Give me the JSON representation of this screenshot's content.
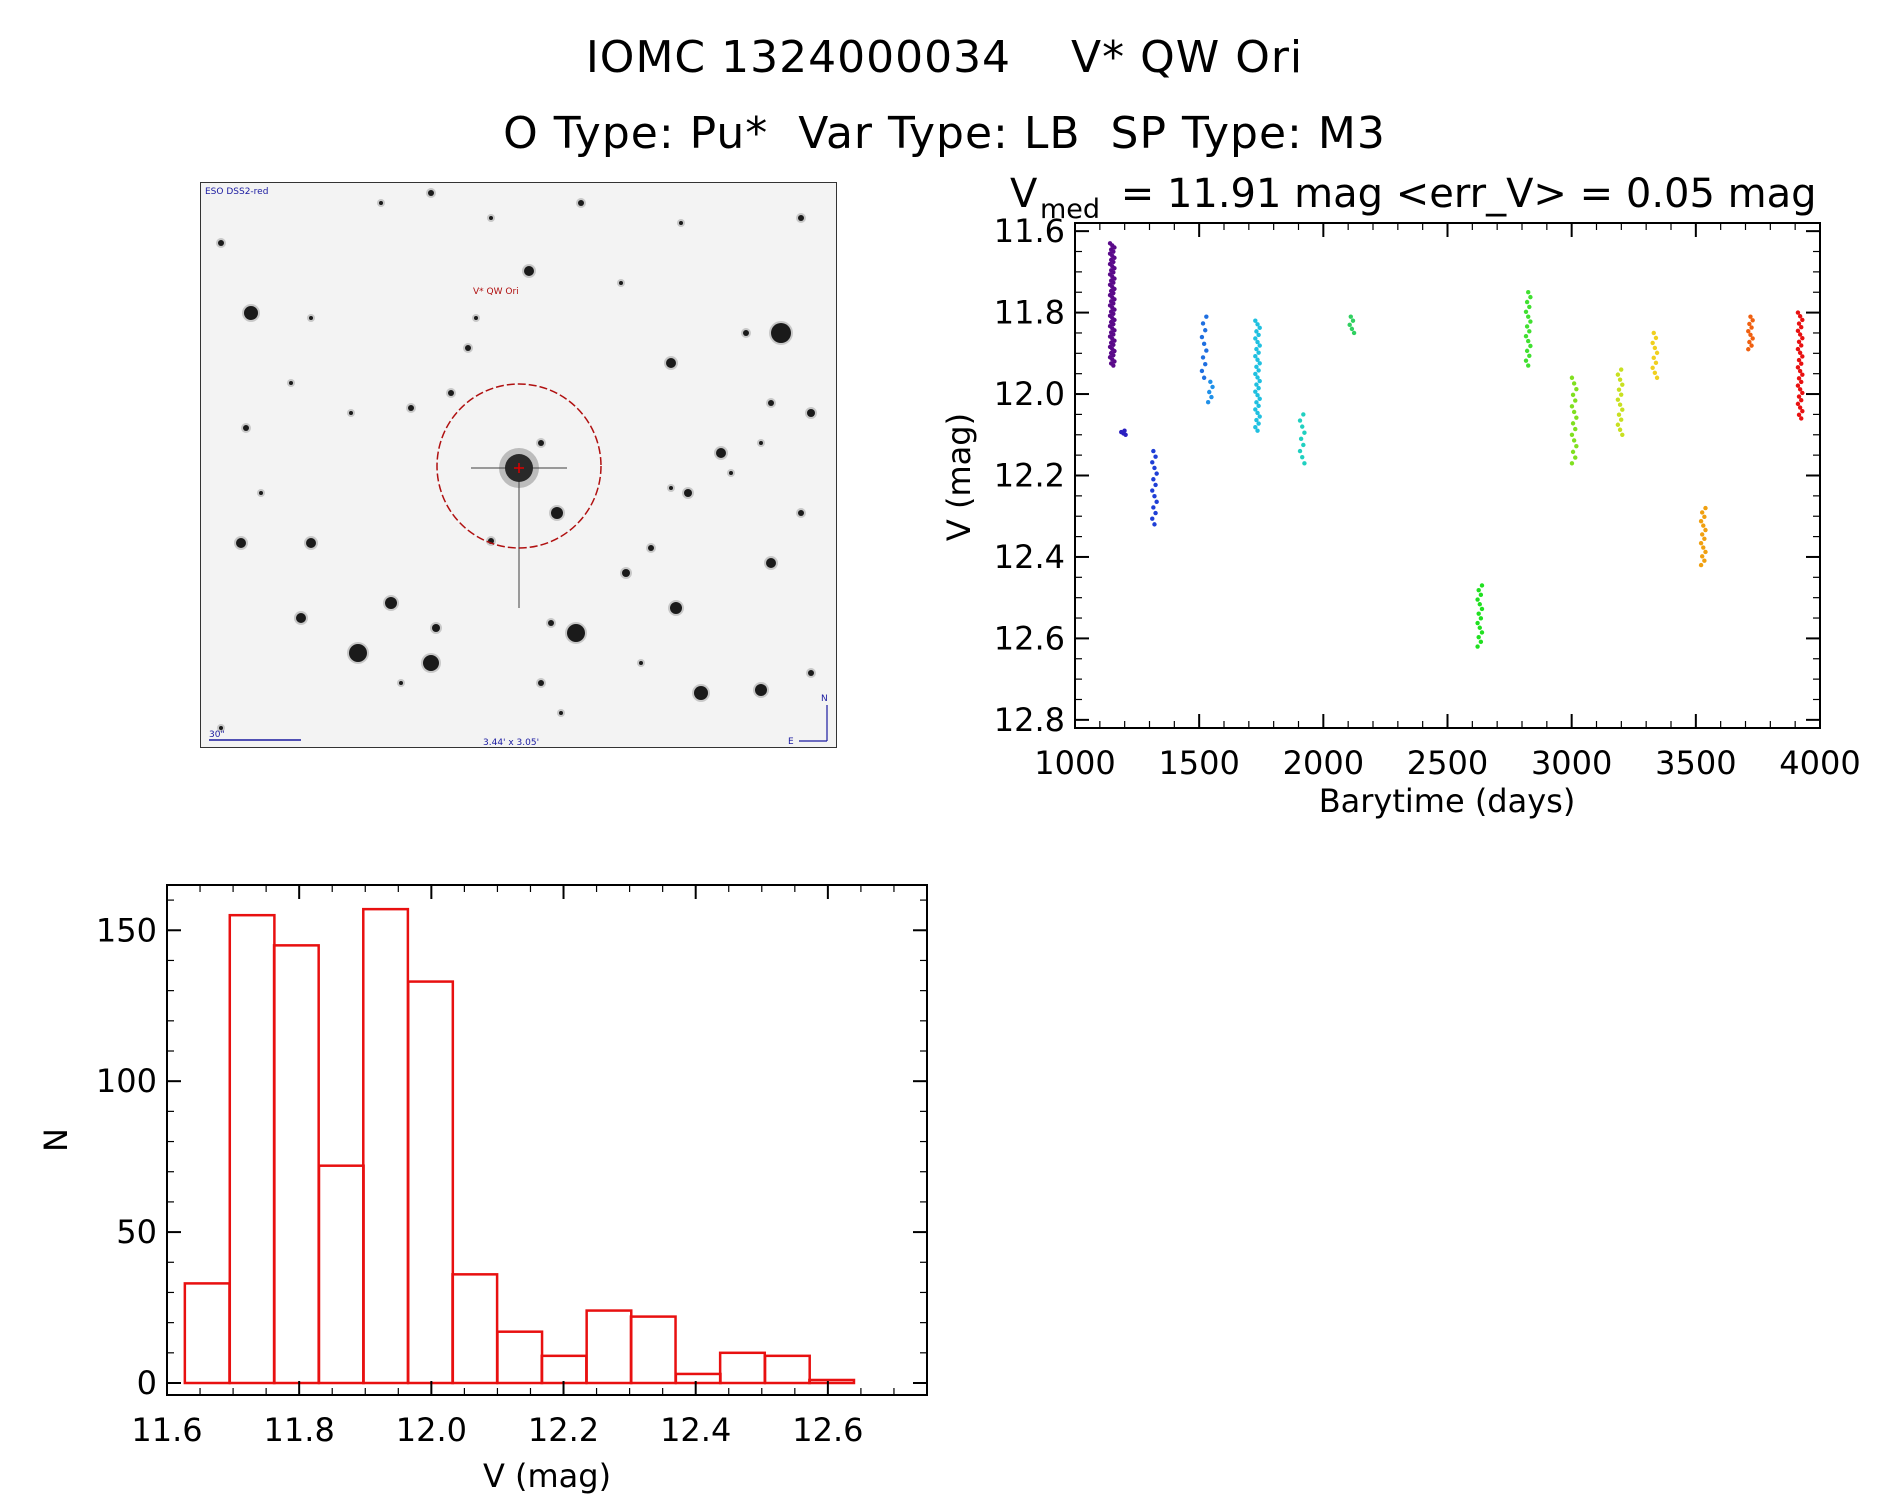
{
  "title_line1": "IOMC 1324000034    V* QW Ori",
  "title_line2": "O Type: Pu*  Var Type: LB  SP Type: M3",
  "finder": {
    "survey_label": "ESO DSS2-red",
    "object_label": "V* QW Ori",
    "scale_label": "30\"",
    "fov_label": "3.44' x 3.05'",
    "north_label": "N",
    "east_label": "E"
  },
  "chart_data": [
    {
      "type": "scatter",
      "title_prefix": "V",
      "title_sub": "med",
      "title_rest": " = 11.91 mag <err_V> = 0.05 mag",
      "xlabel": "Barytime (days)",
      "ylabel": "V (mag)",
      "xlim": [
        1000,
        4000
      ],
      "ylim": [
        12.82,
        11.58
      ],
      "xticks": [
        1000,
        1500,
        2000,
        2500,
        3000,
        3500,
        4000
      ],
      "yticks": [
        "11.6",
        "11.8",
        "12.0",
        "12.2",
        "12.4",
        "12.6",
        "12.8"
      ],
      "series": [
        {
          "x": 1150,
          "ymin": 11.63,
          "ymax": 11.93,
          "n": 60,
          "color": "#5a0a8a"
        },
        {
          "x": 1195,
          "ymin": 12.09,
          "ymax": 12.1,
          "n": 4,
          "color": "#2a1fc0"
        },
        {
          "x": 1320,
          "ymin": 12.14,
          "ymax": 12.32,
          "n": 14,
          "color": "#1f3fd6"
        },
        {
          "x": 1520,
          "ymin": 11.81,
          "ymax": 11.96,
          "n": 10,
          "color": "#1f6fe0"
        },
        {
          "x": 1545,
          "ymin": 11.97,
          "ymax": 12.02,
          "n": 5,
          "color": "#2090e8"
        },
        {
          "x": 1735,
          "ymin": 11.82,
          "ymax": 12.09,
          "n": 32,
          "color": "#20c0e0"
        },
        {
          "x": 1915,
          "ymin": 12.05,
          "ymax": 12.17,
          "n": 9,
          "color": "#20d0c0"
        },
        {
          "x": 2115,
          "ymin": 11.81,
          "ymax": 11.85,
          "n": 5,
          "color": "#30d060"
        },
        {
          "x": 2630,
          "ymin": 12.47,
          "ymax": 12.62,
          "n": 14,
          "color": "#20e020"
        },
        {
          "x": 2825,
          "ymin": 11.75,
          "ymax": 11.93,
          "n": 16,
          "color": "#40e030"
        },
        {
          "x": 3010,
          "ymin": 11.96,
          "ymax": 12.17,
          "n": 16,
          "color": "#80e020"
        },
        {
          "x": 3195,
          "ymin": 11.94,
          "ymax": 12.1,
          "n": 14,
          "color": "#c8e020"
        },
        {
          "x": 3335,
          "ymin": 11.85,
          "ymax": 11.96,
          "n": 10,
          "color": "#f0d020"
        },
        {
          "x": 3530,
          "ymin": 12.28,
          "ymax": 12.42,
          "n": 14,
          "color": "#f0a010"
        },
        {
          "x": 3720,
          "ymin": 11.81,
          "ymax": 11.89,
          "n": 10,
          "color": "#f06010"
        },
        {
          "x": 3920,
          "ymin": 11.8,
          "ymax": 12.06,
          "n": 30,
          "color": "#e81010"
        }
      ]
    },
    {
      "type": "bar",
      "title": "",
      "xlabel": "V (mag)",
      "ylabel": "N",
      "xlim": [
        11.6,
        12.75
      ],
      "ylim": [
        0,
        165
      ],
      "xticks": [
        "11.6",
        "11.8",
        "12.0",
        "12.2",
        "12.4",
        "12.6"
      ],
      "yticks": [
        "0",
        "50",
        "100",
        "150"
      ],
      "bin_width": 0.0675,
      "bin_starts": [
        11.627,
        11.695,
        11.762,
        11.83,
        11.897,
        11.965,
        12.032,
        12.1,
        12.167,
        12.235,
        12.302,
        12.37,
        12.437,
        12.505,
        12.572,
        12.64
      ],
      "values": [
        33,
        155,
        145,
        72,
        157,
        133,
        36,
        17,
        9,
        24,
        22,
        3,
        10,
        9,
        1,
        0
      ],
      "color": "#e81010"
    }
  ]
}
